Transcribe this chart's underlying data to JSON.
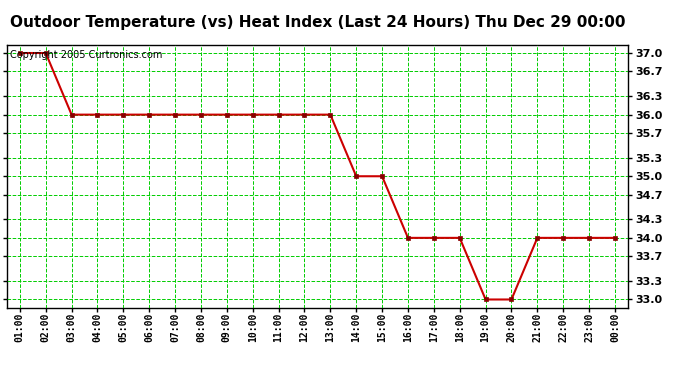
{
  "title": "Outdoor Temperature (vs) Heat Index (Last 24 Hours) Thu Dec 29 00:00",
  "copyright_text": "Copyright 2005 Curtronics.com",
  "x_labels": [
    "01:00",
    "02:00",
    "03:00",
    "04:00",
    "05:00",
    "06:00",
    "07:00",
    "08:00",
    "09:00",
    "10:00",
    "11:00",
    "12:00",
    "13:00",
    "14:00",
    "15:00",
    "16:00",
    "17:00",
    "18:00",
    "19:00",
    "20:00",
    "21:00",
    "22:00",
    "23:00",
    "00:00"
  ],
  "x_values": [
    1,
    2,
    3,
    4,
    5,
    6,
    7,
    8,
    9,
    10,
    11,
    12,
    13,
    14,
    15,
    16,
    17,
    18,
    19,
    20,
    21,
    22,
    23,
    24
  ],
  "y_values": [
    37.0,
    37.0,
    36.0,
    36.0,
    36.0,
    36.0,
    36.0,
    36.0,
    36.0,
    36.0,
    36.0,
    36.0,
    36.0,
    35.0,
    35.0,
    34.0,
    34.0,
    34.0,
    33.0,
    33.0,
    34.0,
    34.0,
    34.0,
    34.0
  ],
  "ylim": [
    32.87,
    37.13
  ],
  "yticks": [
    33.0,
    33.3,
    33.7,
    34.0,
    34.3,
    34.7,
    35.0,
    35.3,
    35.7,
    36.0,
    36.3,
    36.7,
    37.0
  ],
  "line_color": "#cc0000",
  "marker_color": "#880000",
  "grid_color": "#00cc00",
  "bg_color": "#ffffff",
  "title_fontsize": 11,
  "copyright_fontsize": 7,
  "ytick_fontsize": 8,
  "xtick_fontsize": 7
}
